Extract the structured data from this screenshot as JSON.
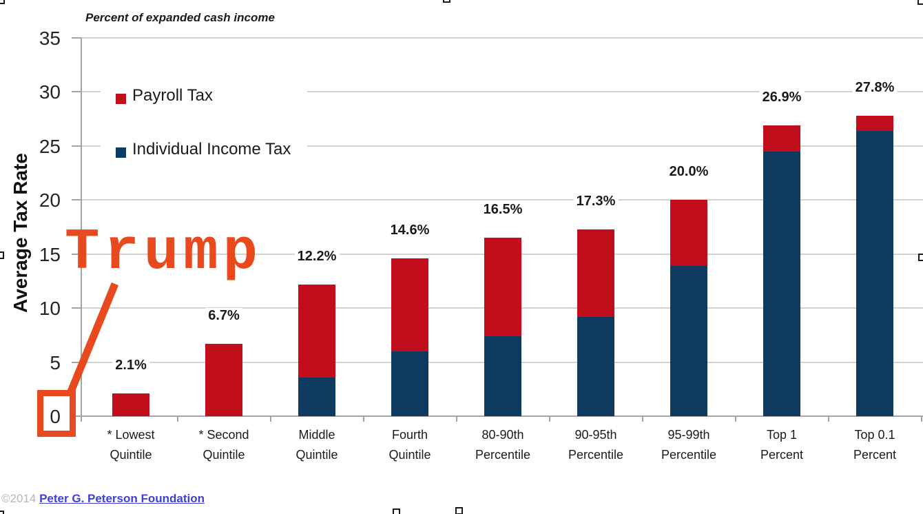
{
  "chart_data": {
    "type": "bar",
    "stacked": true,
    "subtitle": "Percent of expanded cash income",
    "ylabel": "Average Tax Rate",
    "ylim": [
      0,
      35
    ],
    "y_ticks": [
      0,
      5,
      10,
      15,
      20,
      25,
      30,
      35
    ],
    "grid": true,
    "legend_position": "inside top-left",
    "categories": [
      "* Lowest Quintile",
      "* Second Quintile",
      "Middle Quintile",
      "Fourth Quintile",
      "80-90th Percentile",
      "90-95th Percentile",
      "95-99th Percentile",
      "Top 1 Percent",
      "Top 0.1 Percent"
    ],
    "category_lines": [
      [
        "* Lowest",
        "Quintile"
      ],
      [
        "* Second",
        "Quintile"
      ],
      [
        "Middle",
        "Quintile"
      ],
      [
        "Fourth",
        "Quintile"
      ],
      [
        "80-90th",
        "Percentile"
      ],
      [
        "90-95th",
        "Percentile"
      ],
      [
        "95-99th",
        "Percentile"
      ],
      [
        "Top 1",
        "Percent"
      ],
      [
        "Top 0.1",
        "Percent"
      ]
    ],
    "series": [
      {
        "name": "Individual Income Tax",
        "color": "#0e3a5f",
        "values": [
          0,
          0,
          3.6,
          6.0,
          7.4,
          9.2,
          13.9,
          24.5,
          26.4
        ]
      },
      {
        "name": "Payroll Tax",
        "color": "#c20d1c",
        "values": [
          2.1,
          6.7,
          8.6,
          8.6,
          9.1,
          8.1,
          6.1,
          2.4,
          1.4
        ]
      }
    ],
    "totals": [
      2.1,
      6.7,
      12.2,
      14.6,
      16.5,
      17.3,
      20.0,
      26.9,
      27.8
    ],
    "total_labels": [
      "2.1%",
      "6.7%",
      "12.2%",
      "14.6%",
      "16.5%",
      "17.3%",
      "20.0%",
      "26.9%",
      "27.8%"
    ]
  },
  "legend": {
    "items": [
      {
        "label": "Payroll Tax",
        "color": "#c20d1c"
      },
      {
        "label": "Individual Income Tax",
        "color": "#0e3a5f"
      }
    ]
  },
  "annotation": {
    "text": "Trump",
    "color": "#e8491d",
    "target": "0 y-axis tick"
  },
  "footer": {
    "copyright": "©2014",
    "link_text": "Peter G. Peterson Foundation",
    "link_color": "#3e3edc"
  },
  "artifacts": {
    "selection_handles": [
      "top-left",
      "top-center",
      "top-right",
      "left-middle",
      "right-middle",
      "bottom-center-left",
      "bottom-center",
      "bottom-left"
    ]
  }
}
